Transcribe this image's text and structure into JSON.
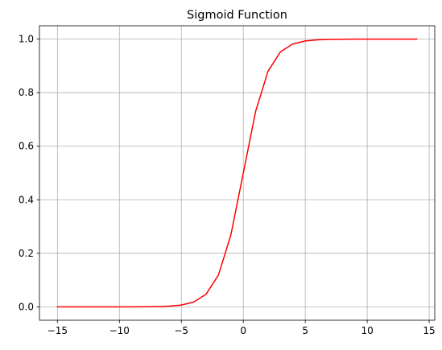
{
  "chart_data": {
    "type": "line",
    "title": "Sigmoid Function",
    "xlabel": "",
    "ylabel": "",
    "xlim": [
      -16.45,
      15.45
    ],
    "ylim": [
      -0.05,
      1.05
    ],
    "xticks": [
      -15,
      -10,
      -5,
      0,
      5,
      10,
      15
    ],
    "yticks": [
      0.0,
      0.2,
      0.4,
      0.6,
      0.8,
      1.0
    ],
    "xtick_labels": [
      "−15",
      "−10",
      "−5",
      "0",
      "5",
      "10",
      "15"
    ],
    "ytick_labels": [
      "0.0",
      "0.2",
      "0.4",
      "0.6",
      "0.8",
      "1.0"
    ],
    "grid": true,
    "series": [
      {
        "color": "#ff0000",
        "x": [
          -15,
          -14,
          -13,
          -12,
          -11,
          -10,
          -9,
          -8,
          -7,
          -6,
          -5,
          -4,
          -3,
          -2,
          -1,
          0,
          1,
          2,
          3,
          4,
          5,
          6,
          7,
          8,
          9,
          10,
          11,
          12,
          13,
          14
        ],
        "y": [
          0.0,
          0.0,
          0.0,
          0.0,
          0.0,
          0.0,
          0.0001,
          0.0003,
          0.0009,
          0.0025,
          0.0067,
          0.018,
          0.0474,
          0.1192,
          0.2689,
          0.5,
          0.7311,
          0.8808,
          0.9526,
          0.982,
          0.9933,
          0.9975,
          0.9991,
          0.9997,
          0.9999,
          1.0,
          1.0,
          1.0,
          1.0,
          1.0
        ]
      }
    ]
  }
}
